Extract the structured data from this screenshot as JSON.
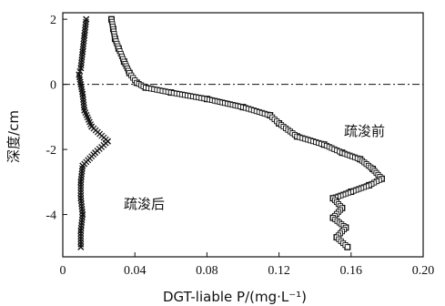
{
  "chart_data": {
    "type": "line",
    "title": "",
    "xlabel": "DGT-liable P/(mg·L⁻¹)",
    "ylabel": "深度/cm",
    "xlim": [
      0,
      0.2
    ],
    "ylim": [
      -5.3,
      2.2
    ],
    "x_ticks": [
      "0",
      "0.04",
      "0.08",
      "0.12",
      "0.16",
      "0.20"
    ],
    "y_ticks": [
      "2",
      "0",
      "-2",
      "-4"
    ],
    "x_tick_values": [
      0,
      0.04,
      0.08,
      0.12,
      0.16,
      0.2
    ],
    "y_tick_values": [
      2,
      0,
      -2,
      -4
    ],
    "reference_line": {
      "y": 0,
      "style": "dash-dot"
    },
    "grid": false,
    "series": [
      {
        "name": "疏浚前",
        "marker": "square",
        "points": [
          [
            0.027,
            2.0
          ],
          [
            0.028,
            1.7
          ],
          [
            0.029,
            1.4
          ],
          [
            0.031,
            1.1
          ],
          [
            0.034,
            0.7
          ],
          [
            0.037,
            0.35
          ],
          [
            0.041,
            0.05
          ],
          [
            0.046,
            -0.1
          ],
          [
            0.06,
            -0.25
          ],
          [
            0.08,
            -0.45
          ],
          [
            0.1,
            -0.7
          ],
          [
            0.115,
            -0.95
          ],
          [
            0.12,
            -1.2
          ],
          [
            0.13,
            -1.6
          ],
          [
            0.145,
            -1.85
          ],
          [
            0.155,
            -2.1
          ],
          [
            0.165,
            -2.3
          ],
          [
            0.172,
            -2.6
          ],
          [
            0.177,
            -2.9
          ],
          [
            0.17,
            -3.1
          ],
          [
            0.16,
            -3.3
          ],
          [
            0.15,
            -3.5
          ],
          [
            0.155,
            -3.8
          ],
          [
            0.15,
            -4.1
          ],
          [
            0.157,
            -4.4
          ],
          [
            0.152,
            -4.7
          ],
          [
            0.158,
            -5.0
          ]
        ]
      },
      {
        "name": "疏浚后",
        "marker": "x",
        "points": [
          [
            0.013,
            2.0
          ],
          [
            0.012,
            1.5
          ],
          [
            0.011,
            1.0
          ],
          [
            0.01,
            0.5
          ],
          [
            0.009,
            0.3
          ],
          [
            0.01,
            0.0
          ],
          [
            0.011,
            -0.3
          ],
          [
            0.012,
            -0.8
          ],
          [
            0.016,
            -1.3
          ],
          [
            0.025,
            -1.75
          ],
          [
            0.018,
            -2.1
          ],
          [
            0.011,
            -2.5
          ],
          [
            0.01,
            -3.0
          ],
          [
            0.01,
            -3.5
          ],
          [
            0.011,
            -4.0
          ],
          [
            0.01,
            -4.5
          ],
          [
            0.01,
            -5.0
          ]
        ]
      }
    ]
  }
}
